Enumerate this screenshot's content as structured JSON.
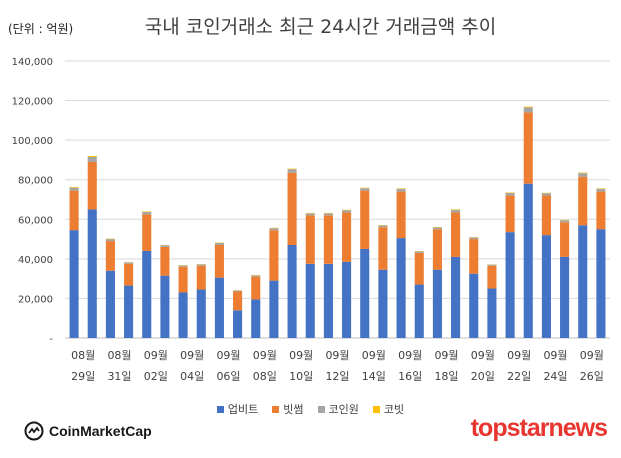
{
  "header": {
    "unit": "(단위 : 억원)",
    "title": "국내 코인거래소 최근 24시간 거래금액 추이"
  },
  "colors": {
    "upbit": "#4472c4",
    "bithumb": "#ed7d31",
    "coinone": "#a5a5a5",
    "korbit": "#ffc000",
    "grid": "#d9d9d9"
  },
  "logos": {
    "coinmarketcap": "CoinMarketCap",
    "topstarnews": "topstarnews"
  },
  "chart_data": {
    "type": "bar",
    "stacked": true,
    "ylim": [
      0,
      140000
    ],
    "y_ticks": [
      0,
      20000,
      40000,
      60000,
      80000,
      100000,
      120000,
      140000
    ],
    "y_tick_labels": [
      "-",
      "20,000",
      "40,000",
      "60,000",
      "80,000",
      "100,000",
      "120,000",
      "140,000"
    ],
    "x_tick_labels": [
      {
        "month": "08월",
        "day": "29일"
      },
      {
        "month": "08월",
        "day": "31일"
      },
      {
        "month": "09월",
        "day": "02일"
      },
      {
        "month": "09월",
        "day": "04일"
      },
      {
        "month": "09월",
        "day": "06일"
      },
      {
        "month": "09월",
        "day": "08일"
      },
      {
        "month": "09월",
        "day": "10일"
      },
      {
        "month": "09월",
        "day": "12일"
      },
      {
        "month": "09월",
        "day": "14일"
      },
      {
        "month": "09월",
        "day": "16일"
      },
      {
        "month": "09월",
        "day": "18일"
      },
      {
        "month": "09월",
        "day": "20일"
      },
      {
        "month": "09월",
        "day": "22일"
      },
      {
        "month": "09월",
        "day": "24일"
      },
      {
        "month": "09월",
        "day": "26일"
      }
    ],
    "grid": true,
    "legend_position": "bottom",
    "series": [
      {
        "name": "업비트",
        "color_key": "upbit",
        "values": [
          54500,
          65000,
          34000,
          26500,
          44000,
          31500,
          23000,
          24500,
          30500,
          14000,
          19500,
          29000,
          47000,
          37500,
          37500,
          38500,
          45000,
          34500,
          50500,
          27000,
          34500,
          41000,
          32500,
          25000,
          53500,
          78000,
          52000,
          41000,
          57000,
          55000
        ]
      },
      {
        "name": "빗썸",
        "color_key": "bithumb",
        "values": [
          20000,
          24000,
          15000,
          11000,
          18500,
          14500,
          13000,
          12000,
          16500,
          9500,
          11500,
          25500,
          36500,
          24500,
          24500,
          25000,
          29500,
          21500,
          23500,
          16000,
          20500,
          22500,
          17500,
          11500,
          18500,
          36000,
          20000,
          17500,
          24500,
          19000
        ]
      },
      {
        "name": "코인원",
        "color_key": "coinone",
        "values": [
          1500,
          2500,
          1000,
          700,
          1200,
          800,
          700,
          700,
          1000,
          500,
          700,
          1000,
          1800,
          1000,
          1000,
          1100,
          1200,
          900,
          1400,
          800,
          900,
          1200,
          800,
          600,
          1300,
          2500,
          1200,
          1000,
          1800,
          1400
        ]
      },
      {
        "name": "코빗",
        "color_key": "korbit",
        "values": [
          300,
          500,
          200,
          150,
          250,
          150,
          150,
          150,
          200,
          100,
          150,
          200,
          300,
          200,
          200,
          200,
          250,
          200,
          250,
          150,
          200,
          250,
          150,
          100,
          250,
          400,
          200,
          200,
          300,
          250
        ]
      }
    ]
  }
}
